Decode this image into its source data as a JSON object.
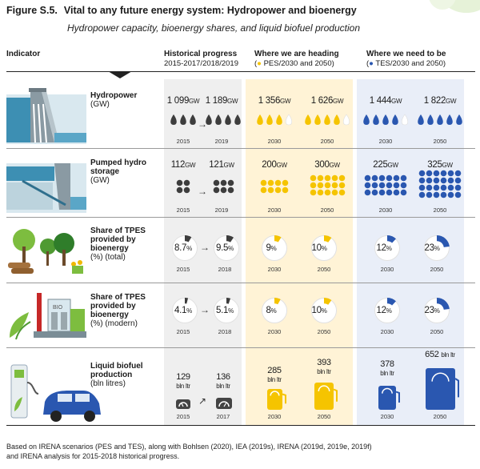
{
  "figure": {
    "label": "Figure S.5.",
    "title": "Vital to any future energy system: Hydropower and bioenergy",
    "subtitle": "Hydropower capacity, bioenergy shares, and liquid biofuel production"
  },
  "columns": {
    "indicator": "Indicator",
    "historical": "Historical progress",
    "historical_sub": "2015-2017/2018/2019",
    "heading": "Where we are heading",
    "heading_sub": "PES/2030 and 2050)",
    "need": "Where we need to be",
    "need_sub": "TES/2030 and 2050)"
  },
  "colors": {
    "historical": "#3d3d3d",
    "heading": "#f5c400",
    "need": "#2a57b0",
    "heading_bg": "#fff3d6",
    "need_bg": "#e9eef8",
    "hist_bg": "#efefef"
  },
  "rows": [
    {
      "name": "Hydropower",
      "unit": "(GW)",
      "icon": "dam-icon",
      "hist": [
        {
          "value": "1 099",
          "unit": "GW",
          "year": "2015"
        },
        {
          "value": "1 189",
          "unit": "GW",
          "year": "2019"
        }
      ],
      "heading": [
        {
          "value": "1 356",
          "unit": "GW",
          "year": "2030"
        },
        {
          "value": "1 626",
          "unit": "GW",
          "year": "2050"
        }
      ],
      "need": [
        {
          "value": "1 444",
          "unit": "GW",
          "year": "2030"
        },
        {
          "value": "1 822",
          "unit": "GW",
          "year": "2050"
        }
      ]
    },
    {
      "name": "Pumped hydro storage",
      "unit": "(GW)",
      "icon": "pumped-storage-icon",
      "hist": [
        {
          "value": "112",
          "unit": "GW",
          "year": "2015"
        },
        {
          "value": "121",
          "unit": "GW",
          "year": "2019"
        }
      ],
      "heading": [
        {
          "value": "200",
          "unit": "GW",
          "year": "2030"
        },
        {
          "value": "300",
          "unit": "GW",
          "year": "2050"
        }
      ],
      "need": [
        {
          "value": "225",
          "unit": "GW",
          "year": "2030"
        },
        {
          "value": "325",
          "unit": "GW",
          "year": "2050"
        }
      ]
    },
    {
      "name": "Share of TPES provided by bioenergy",
      "unit": "(%) (total)",
      "icon": "forest-icon",
      "hist": [
        {
          "value": "8.7",
          "unit": "%",
          "year": "2015"
        },
        {
          "value": "9.5",
          "unit": "%",
          "year": "2018"
        }
      ],
      "heading": [
        {
          "value": "9",
          "unit": "%",
          "year": "2030"
        },
        {
          "value": "10",
          "unit": "%",
          "year": "2050"
        }
      ],
      "need": [
        {
          "value": "12",
          "unit": "%",
          "year": "2030"
        },
        {
          "value": "23",
          "unit": "%",
          "year": "2050"
        }
      ]
    },
    {
      "name": "Share of TPES provided by bioenergy",
      "unit": "(%) (modern)",
      "icon": "bioplant-icon",
      "plant_label": "BIO",
      "hist": [
        {
          "value": "4.1",
          "unit": "%",
          "year": "2015"
        },
        {
          "value": "5.1",
          "unit": "%",
          "year": "2018"
        }
      ],
      "heading": [
        {
          "value": "8",
          "unit": "%",
          "year": "2030"
        },
        {
          "value": "10",
          "unit": "%",
          "year": "2050"
        }
      ],
      "need": [
        {
          "value": "12",
          "unit": "%",
          "year": "2030"
        },
        {
          "value": "23",
          "unit": "%",
          "year": "2050"
        }
      ]
    },
    {
      "name": "Liquid biofuel production",
      "unit": "(bln litres)",
      "icon": "ev-car-icon",
      "hist": [
        {
          "value": "129",
          "unit": "bln ltr",
          "year": "2015"
        },
        {
          "value": "136",
          "unit": "bln ltr",
          "year": "2017"
        }
      ],
      "heading": [
        {
          "value": "285",
          "unit": "bln ltr",
          "year": "2030"
        },
        {
          "value": "393",
          "unit": "bln ltr",
          "year": "2050"
        }
      ],
      "need": [
        {
          "value": "378",
          "unit": "bln ltr",
          "year": "2030"
        },
        {
          "value": "652",
          "unit": "bln ltr",
          "year": "2050"
        }
      ]
    }
  ],
  "footer": {
    "line1": "Based on IRENA scenarios (PES and TES), along with Bohlsen (2020), IEA (2019s), IRENA (2019d, 2019e, 2019f)",
    "line2": "and IRENA analysis for 2015-2018 historical progress."
  },
  "pies": {
    "hist_total": [
      0.087,
      0.095
    ],
    "heading_total": [
      0.09,
      0.1
    ],
    "need_total": [
      0.12,
      0.23
    ],
    "hist_modern": [
      0.041,
      0.051
    ],
    "heading_modern": [
      0.08,
      0.1
    ],
    "need_modern": [
      0.12,
      0.23
    ]
  }
}
